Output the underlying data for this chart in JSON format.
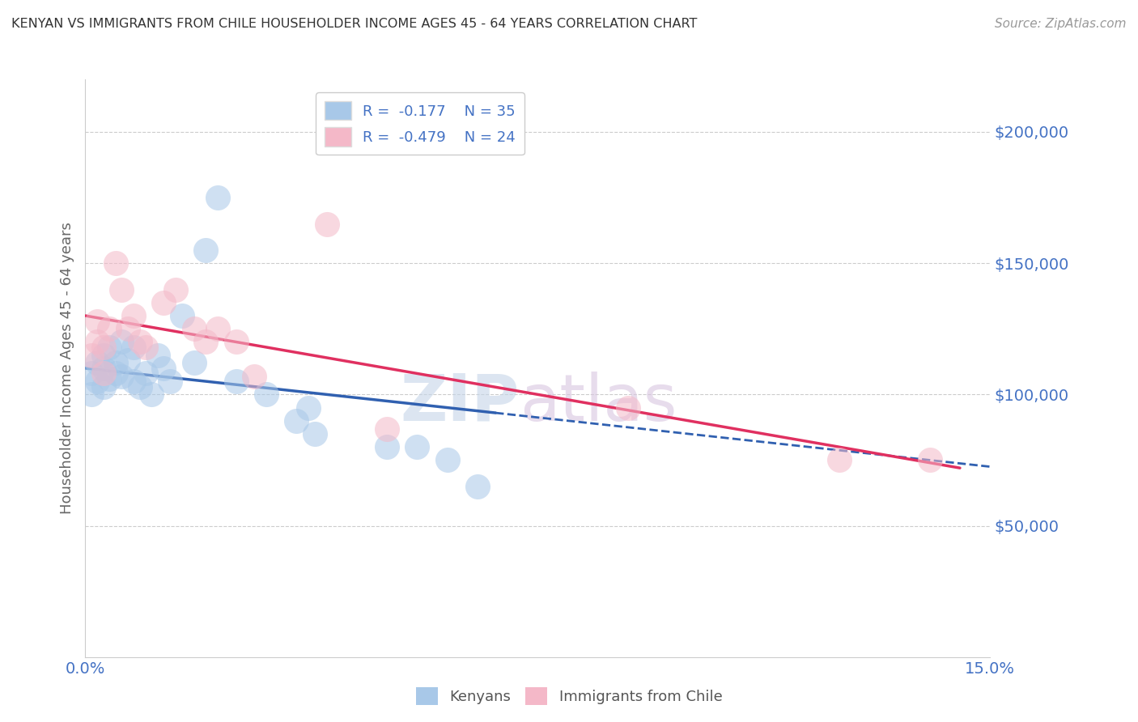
{
  "title": "KENYAN VS IMMIGRANTS FROM CHILE HOUSEHOLDER INCOME AGES 45 - 64 YEARS CORRELATION CHART",
  "source": "Source: ZipAtlas.com",
  "ylabel": "Householder Income Ages 45 - 64 years",
  "x_min": 0.0,
  "x_max": 0.15,
  "y_min": 0,
  "y_max": 220000,
  "yticks": [
    50000,
    100000,
    150000,
    200000
  ],
  "ytick_labels": [
    "$50,000",
    "$100,000",
    "$150,000",
    "$200,000"
  ],
  "blue_color": "#a8c8e8",
  "pink_color": "#f4b8c8",
  "blue_line_color": "#3060b0",
  "pink_line_color": "#e03060",
  "kenyans_x": [
    0.001,
    0.001,
    0.002,
    0.002,
    0.003,
    0.003,
    0.003,
    0.004,
    0.004,
    0.005,
    0.005,
    0.006,
    0.006,
    0.007,
    0.008,
    0.008,
    0.009,
    0.01,
    0.011,
    0.012,
    0.013,
    0.014,
    0.016,
    0.018,
    0.02,
    0.022,
    0.025,
    0.03,
    0.035,
    0.037,
    0.038,
    0.05,
    0.055,
    0.06,
    0.065
  ],
  "kenyans_y": [
    100000,
    108000,
    105000,
    112000,
    103000,
    110000,
    115000,
    106000,
    118000,
    108000,
    112000,
    120000,
    107000,
    113000,
    118000,
    105000,
    103000,
    108000,
    100000,
    115000,
    110000,
    105000,
    130000,
    112000,
    155000,
    175000,
    105000,
    100000,
    90000,
    95000,
    85000,
    80000,
    80000,
    75000,
    65000
  ],
  "chile_x": [
    0.001,
    0.002,
    0.002,
    0.003,
    0.003,
    0.004,
    0.005,
    0.006,
    0.007,
    0.008,
    0.009,
    0.01,
    0.013,
    0.015,
    0.018,
    0.02,
    0.022,
    0.025,
    0.028,
    0.04,
    0.05,
    0.09,
    0.125,
    0.14
  ],
  "chile_y": [
    115000,
    120000,
    128000,
    108000,
    118000,
    125000,
    150000,
    140000,
    125000,
    130000,
    120000,
    118000,
    135000,
    140000,
    125000,
    120000,
    125000,
    120000,
    107000,
    165000,
    87000,
    95000,
    75000,
    75000
  ],
  "watermark_zip": "ZIP",
  "watermark_atlas": "atlas",
  "background_color": "#ffffff",
  "grid_color": "#cccccc",
  "blue_line_intercept": 110000,
  "blue_line_slope": -250000,
  "pink_line_intercept": 130000,
  "pink_line_slope": -400000
}
